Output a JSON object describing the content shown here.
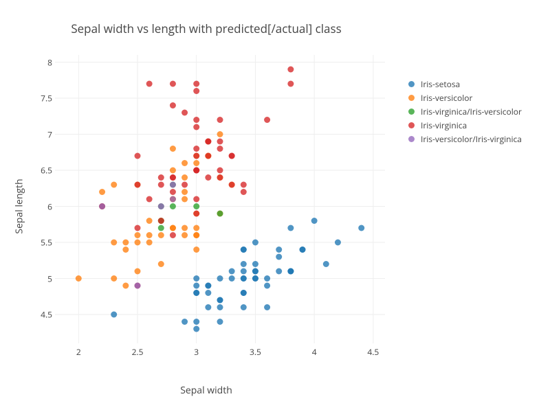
{
  "chart": {
    "type": "scatter",
    "title": "Sepal width vs length with predicted[/actual] class",
    "title_fontsize": 17,
    "title_color": "#444444",
    "background_color": "#ffffff",
    "plot_background_color": "#ffffff",
    "grid_color": "#eeeeee",
    "zero_line_color": "#444444",
    "axis_line_color": "#444444",
    "font_family": "Open Sans, Verdana, Arial, sans-serif",
    "x": {
      "label": "Sepal width",
      "label_fontsize": 14,
      "min": 1.8,
      "max": 4.6,
      "ticks": [
        2,
        2.5,
        3,
        3.5,
        4,
        4.5
      ],
      "tick_fontsize": 12
    },
    "y": {
      "label": "Sepal length",
      "label_fontsize": 14,
      "min": 4.1,
      "max": 8.1,
      "ticks": [
        4.5,
        5,
        5.5,
        6,
        6.5,
        7,
        7.5,
        8
      ],
      "tick_fontsize": 12
    },
    "marker": {
      "size": 4.5,
      "opacity": 0.78
    },
    "legend": {
      "position": "right",
      "fontsize": 12,
      "items": [
        {
          "label": "Iris-setosa",
          "color": "#1f77b4"
        },
        {
          "label": "Iris-versicolor",
          "color": "#ff7f0e"
        },
        {
          "label": "Iris-virginica/Iris-versicolor",
          "color": "#2ca02c"
        },
        {
          "label": "Iris-virginica",
          "color": "#d62728"
        },
        {
          "label": "Iris-versicolor/Iris-virginica",
          "color": "#9467bd"
        }
      ]
    },
    "series": [
      {
        "name": "Iris-setosa",
        "color": "#1f77b4",
        "points": [
          [
            3.5,
            5.1
          ],
          [
            3.0,
            4.9
          ],
          [
            3.2,
            4.7
          ],
          [
            3.1,
            4.6
          ],
          [
            3.6,
            5.0
          ],
          [
            3.9,
            5.4
          ],
          [
            3.4,
            4.6
          ],
          [
            3.4,
            5.0
          ],
          [
            2.9,
            4.4
          ],
          [
            3.1,
            4.9
          ],
          [
            3.7,
            5.4
          ],
          [
            3.4,
            4.8
          ],
          [
            3.0,
            4.8
          ],
          [
            3.0,
            4.3
          ],
          [
            4.0,
            5.8
          ],
          [
            4.4,
            5.7
          ],
          [
            3.9,
            5.4
          ],
          [
            3.5,
            5.1
          ],
          [
            3.8,
            5.7
          ],
          [
            3.8,
            5.1
          ],
          [
            3.4,
            5.4
          ],
          [
            3.7,
            5.1
          ],
          [
            3.6,
            4.6
          ],
          [
            3.3,
            5.1
          ],
          [
            3.4,
            4.8
          ],
          [
            3.0,
            5.0
          ],
          [
            3.4,
            5.0
          ],
          [
            3.5,
            5.2
          ],
          [
            3.4,
            5.2
          ],
          [
            3.2,
            4.7
          ],
          [
            3.1,
            4.8
          ],
          [
            3.4,
            5.4
          ],
          [
            4.1,
            5.2
          ],
          [
            4.2,
            5.5
          ],
          [
            3.1,
            4.9
          ],
          [
            3.2,
            5.0
          ],
          [
            3.5,
            5.5
          ],
          [
            3.6,
            4.9
          ],
          [
            3.0,
            4.4
          ],
          [
            3.4,
            5.1
          ],
          [
            3.5,
            5.0
          ],
          [
            2.3,
            4.5
          ],
          [
            3.2,
            4.4
          ],
          [
            3.5,
            5.0
          ],
          [
            3.8,
            5.1
          ],
          [
            3.0,
            4.8
          ],
          [
            3.8,
            5.1
          ],
          [
            3.2,
            4.6
          ],
          [
            3.7,
            5.3
          ],
          [
            3.3,
            5.0
          ]
        ]
      },
      {
        "name": "Iris-versicolor",
        "color": "#ff7f0e",
        "points": [
          [
            3.2,
            7.0
          ],
          [
            3.2,
            6.4
          ],
          [
            3.1,
            6.9
          ],
          [
            2.3,
            5.5
          ],
          [
            2.8,
            6.5
          ],
          [
            2.8,
            5.7
          ],
          [
            3.3,
            6.3
          ],
          [
            2.4,
            4.9
          ],
          [
            2.9,
            6.6
          ],
          [
            2.7,
            5.2
          ],
          [
            2.0,
            5.0
          ],
          [
            3.0,
            5.9
          ],
          [
            2.2,
            6.0
          ],
          [
            2.9,
            6.1
          ],
          [
            2.9,
            5.6
          ],
          [
            3.1,
            6.7
          ],
          [
            3.0,
            5.6
          ],
          [
            2.7,
            5.8
          ],
          [
            2.2,
            6.2
          ],
          [
            2.5,
            5.6
          ],
          [
            3.2,
            5.9
          ],
          [
            2.8,
            6.1
          ],
          [
            2.5,
            6.3
          ],
          [
            2.8,
            6.1
          ],
          [
            2.9,
            6.4
          ],
          [
            3.0,
            6.6
          ],
          [
            2.8,
            6.8
          ],
          [
            3.0,
            6.7
          ],
          [
            2.6,
            5.5
          ],
          [
            2.4,
            5.5
          ],
          [
            2.4,
            5.4
          ],
          [
            3.1,
            6.7
          ],
          [
            2.3,
            6.3
          ],
          [
            3.0,
            5.6
          ],
          [
            2.5,
            5.5
          ],
          [
            2.6,
            5.8
          ],
          [
            3.0,
            5.4
          ],
          [
            2.6,
            5.6
          ],
          [
            2.3,
            5.0
          ],
          [
            2.7,
            5.6
          ],
          [
            3.0,
            5.7
          ],
          [
            2.9,
            5.7
          ],
          [
            2.9,
            6.2
          ],
          [
            2.5,
            5.1
          ],
          [
            2.8,
            5.7
          ]
        ]
      },
      {
        "name": "Iris-virginica/Iris-versicolor",
        "color": "#2ca02c",
        "points": [
          [
            2.7,
            5.8
          ],
          [
            2.7,
            6.0
          ],
          [
            3.0,
            6.0
          ],
          [
            2.8,
            6.0
          ],
          [
            2.7,
            5.7
          ],
          [
            2.8,
            6.3
          ],
          [
            3.2,
            5.9
          ]
        ]
      },
      {
        "name": "Iris-virginica",
        "color": "#d62728",
        "points": [
          [
            3.3,
            6.3
          ],
          [
            2.7,
            5.8
          ],
          [
            3.0,
            7.1
          ],
          [
            2.9,
            6.3
          ],
          [
            3.0,
            6.5
          ],
          [
            3.0,
            7.6
          ],
          [
            2.5,
            4.9
          ],
          [
            2.9,
            7.3
          ],
          [
            2.5,
            6.7
          ],
          [
            3.6,
            7.2
          ],
          [
            3.2,
            6.5
          ],
          [
            2.7,
            6.4
          ],
          [
            3.0,
            6.8
          ],
          [
            2.5,
            5.7
          ],
          [
            3.2,
            6.4
          ],
          [
            3.0,
            6.5
          ],
          [
            3.8,
            7.7
          ],
          [
            2.6,
            7.7
          ],
          [
            2.2,
            6.0
          ],
          [
            3.2,
            6.9
          ],
          [
            2.8,
            5.6
          ],
          [
            2.8,
            7.7
          ],
          [
            2.7,
            6.3
          ],
          [
            3.3,
            6.7
          ],
          [
            3.2,
            7.2
          ],
          [
            2.8,
            6.2
          ],
          [
            3.0,
            6.1
          ],
          [
            2.8,
            6.4
          ],
          [
            3.0,
            7.2
          ],
          [
            2.8,
            7.4
          ],
          [
            3.8,
            7.9
          ],
          [
            2.8,
            6.4
          ],
          [
            2.6,
            6.1
          ],
          [
            3.0,
            7.7
          ],
          [
            3.4,
            6.3
          ],
          [
            3.1,
            6.4
          ],
          [
            3.1,
            6.9
          ],
          [
            3.1,
            6.7
          ],
          [
            3.1,
            6.9
          ],
          [
            3.2,
            6.8
          ],
          [
            3.3,
            6.7
          ],
          [
            3.0,
            6.7
          ],
          [
            2.5,
            6.3
          ],
          [
            3.0,
            6.5
          ],
          [
            3.4,
            6.2
          ],
          [
            3.0,
            5.9
          ]
        ]
      },
      {
        "name": "Iris-versicolor/Iris-virginica",
        "color": "#9467bd",
        "points": [
          [
            2.7,
            6.0
          ],
          [
            2.5,
            4.9
          ],
          [
            2.2,
            6.0
          ],
          [
            2.8,
            6.1
          ],
          [
            2.8,
            6.3
          ]
        ]
      }
    ]
  }
}
